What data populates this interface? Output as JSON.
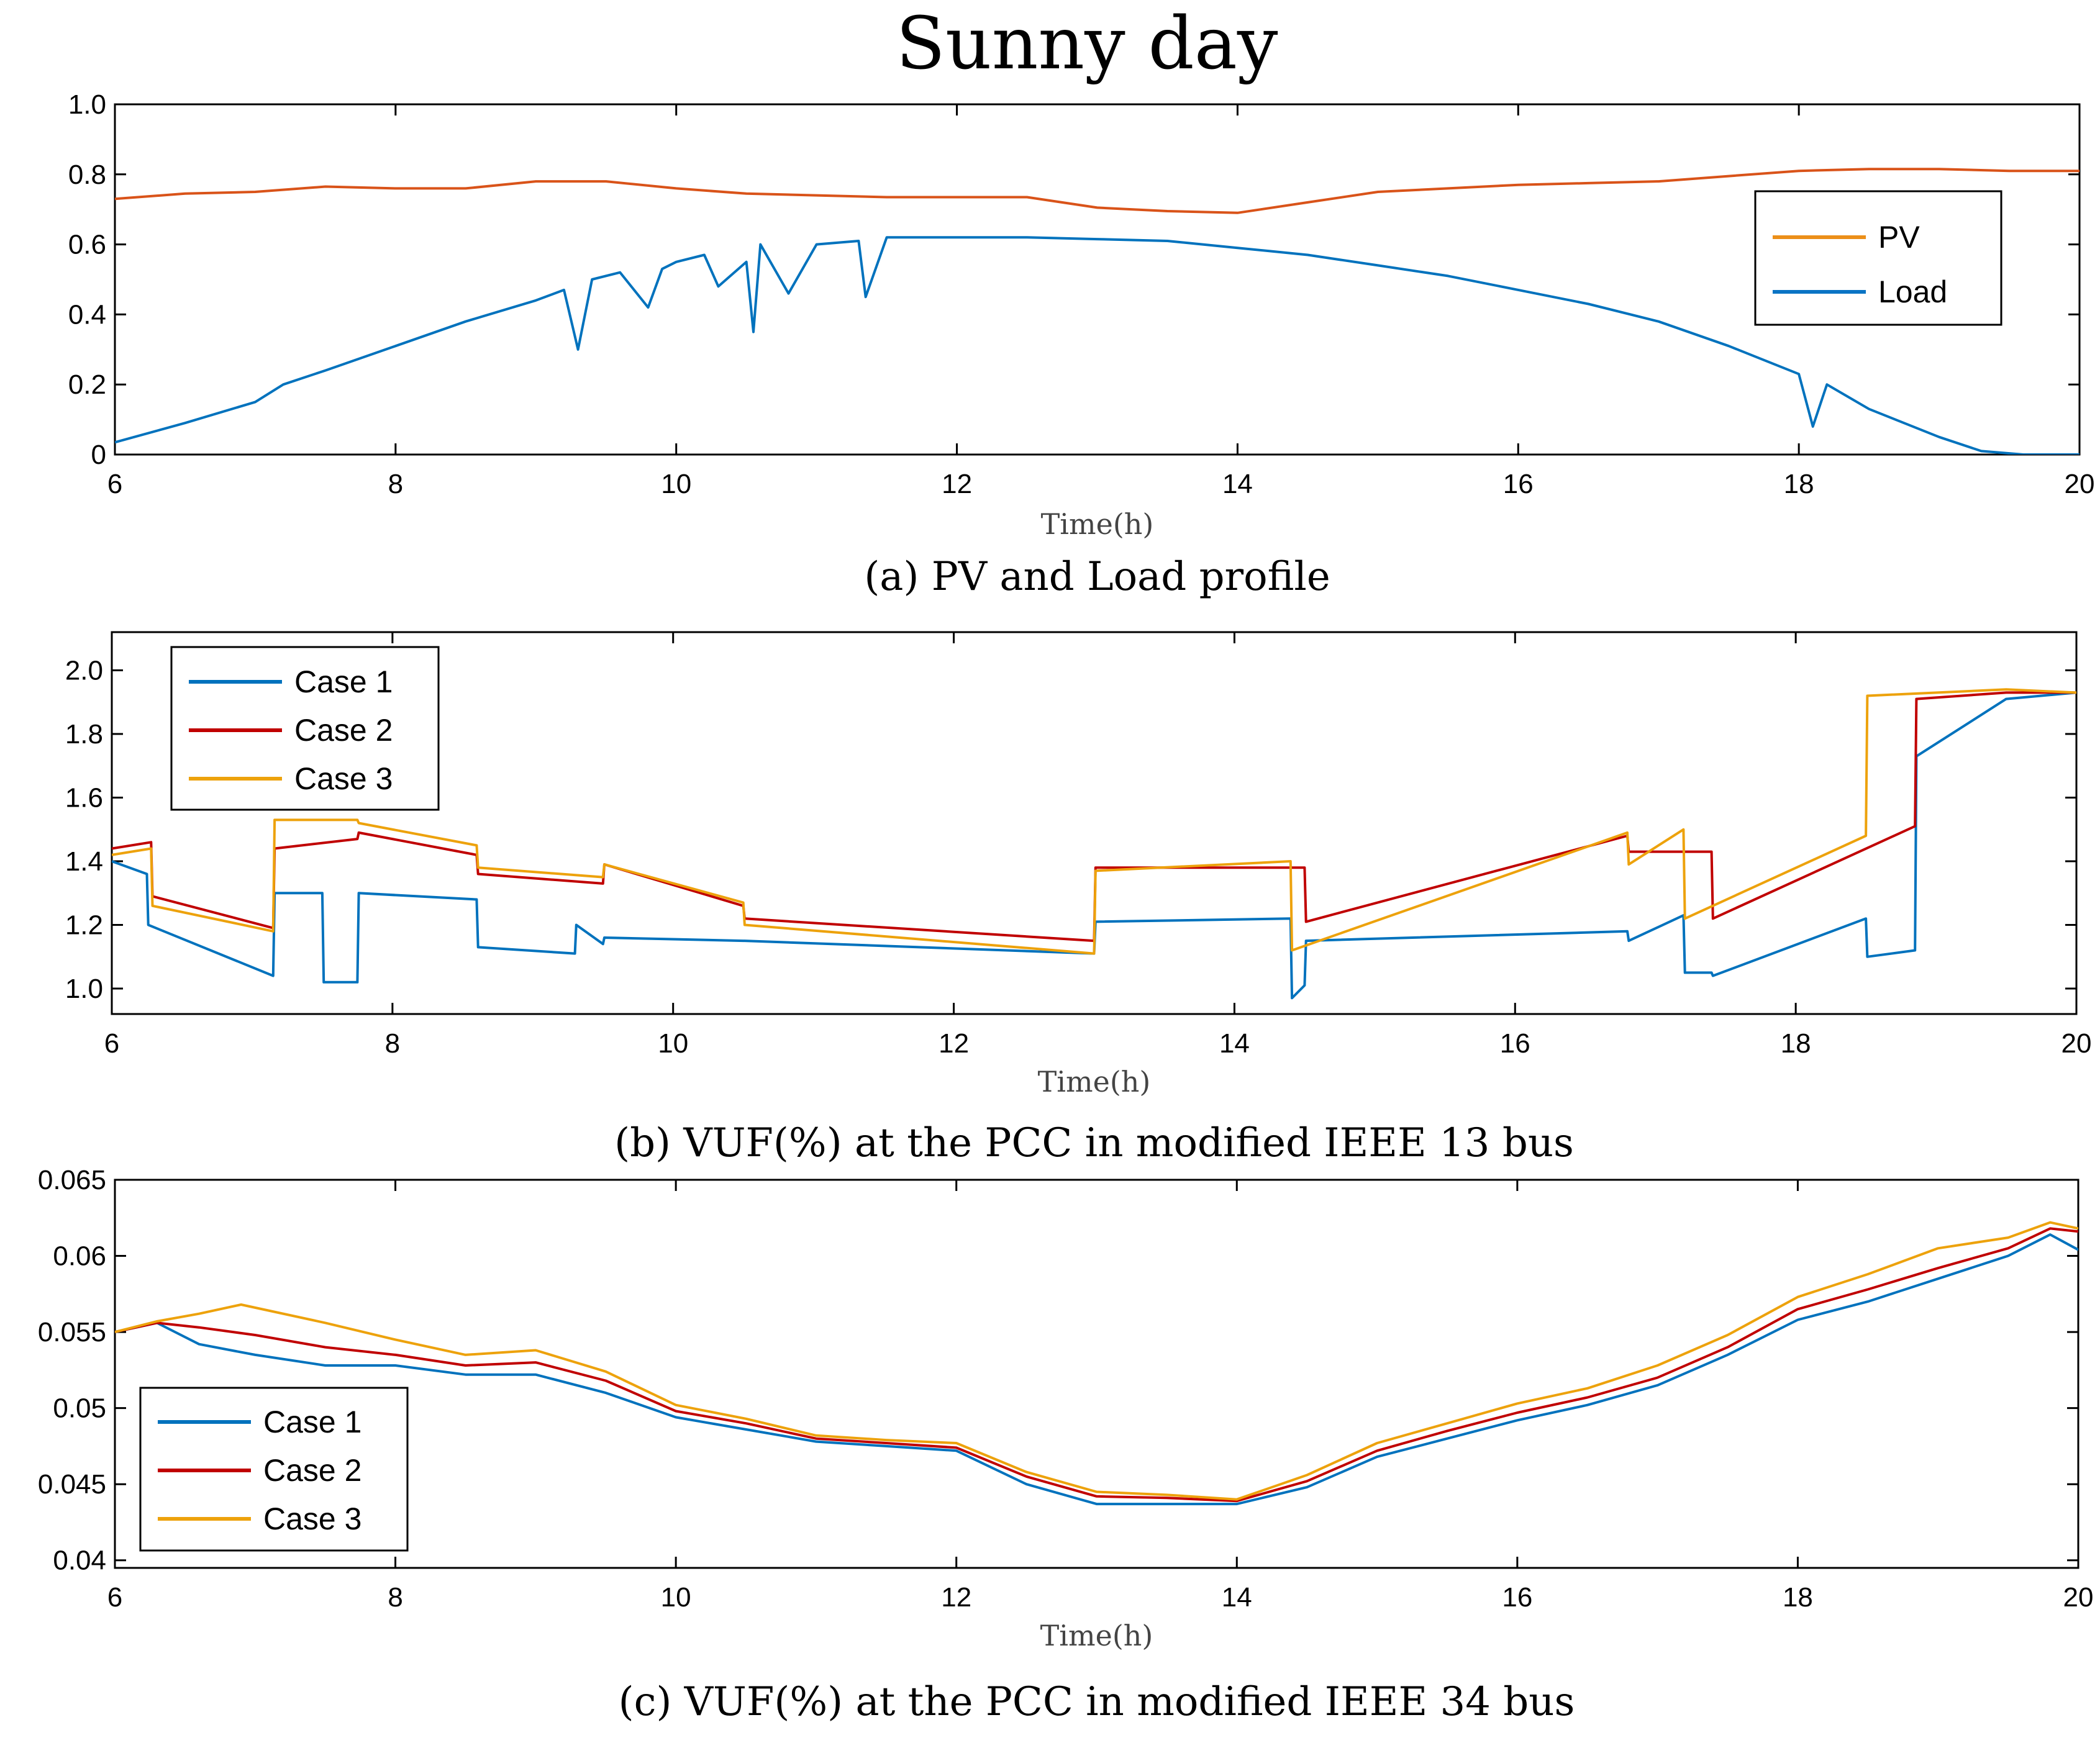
{
  "figure_title": "Sunny day",
  "colors": {
    "pv": "#D95319",
    "load": "#0072BD",
    "case1": "#0072BD",
    "case2": "#C00000",
    "case3": "#EDA20C",
    "axis": "#000000"
  },
  "chart_data": [
    {
      "type": "line",
      "caption": "(a) PV and Load profile",
      "xlabel": "Time(h)",
      "ylabel": "",
      "xlim": [
        6,
        20
      ],
      "ylim": [
        0,
        1
      ],
      "xticks": [
        6,
        8,
        10,
        12,
        14,
        16,
        18,
        20
      ],
      "yticks": [
        0,
        0.2,
        0.4,
        0.6,
        0.8,
        1.0
      ],
      "ytick_labels": [
        "0",
        "0.2",
        "0.4",
        "0.6",
        "0.8",
        "1.0"
      ],
      "legend": {
        "location": "right",
        "entries": [
          {
            "label": "PV",
            "color": "#EC8F19"
          },
          {
            "label": "Load",
            "color": "#0A74C4"
          }
        ]
      },
      "series": [
        {
          "name": "PV",
          "color": "#D95319",
          "x": [
            6,
            6.5,
            7,
            7.5,
            8,
            8.5,
            9,
            9.5,
            10,
            10.5,
            11,
            11.5,
            12,
            12.5,
            13,
            13.5,
            14,
            14.5,
            15,
            15.5,
            16,
            16.5,
            17,
            17.5,
            18,
            18.5,
            19,
            19.5,
            20
          ],
          "y": [
            0.73,
            0.745,
            0.75,
            0.765,
            0.76,
            0.76,
            0.78,
            0.78,
            0.76,
            0.745,
            0.74,
            0.735,
            0.735,
            0.735,
            0.705,
            0.695,
            0.69,
            0.72,
            0.75,
            0.76,
            0.77,
            0.775,
            0.78,
            0.795,
            0.81,
            0.815,
            0.815,
            0.81,
            0.81
          ]
        },
        {
          "name": "Load",
          "color": "#0072BD",
          "x": [
            6,
            6.5,
            7,
            7.2,
            7.5,
            8,
            8.5,
            9,
            9.2,
            9.3,
            9.4,
            9.6,
            9.8,
            9.9,
            10,
            10.2,
            10.3,
            10.5,
            10.55,
            10.6,
            10.8,
            11,
            11.3,
            11.35,
            11.5,
            12,
            12.5,
            13,
            13.5,
            14,
            14.5,
            15,
            15.5,
            16,
            16.5,
            17,
            17.5,
            18,
            18.1,
            18.2,
            18.5,
            19,
            19.3,
            19.6,
            20
          ],
          "y": [
            0.035,
            0.09,
            0.15,
            0.2,
            0.24,
            0.31,
            0.38,
            0.44,
            0.47,
            0.3,
            0.5,
            0.52,
            0.42,
            0.53,
            0.55,
            0.57,
            0.48,
            0.55,
            0.35,
            0.6,
            0.46,
            0.6,
            0.61,
            0.45,
            0.62,
            0.62,
            0.62,
            0.615,
            0.61,
            0.59,
            0.57,
            0.54,
            0.51,
            0.47,
            0.43,
            0.38,
            0.31,
            0.23,
            0.08,
            0.2,
            0.13,
            0.05,
            0.01,
            0.0,
            0.0
          ]
        }
      ]
    },
    {
      "type": "line",
      "caption": "(b) VUF(%) at the PCC in modified IEEE 13 bus",
      "xlabel": "Time(h)",
      "ylabel": "",
      "xlim": [
        6,
        20
      ],
      "ylim": [
        0.92,
        2.12
      ],
      "xticks": [
        6,
        8,
        10,
        12,
        14,
        16,
        18,
        20
      ],
      "yticks": [
        1.0,
        1.2,
        1.4,
        1.6,
        1.8,
        2.0
      ],
      "ytick_labels": [
        "1.0",
        "1.2",
        "1.4",
        "1.6",
        "1.8",
        "2.0"
      ],
      "legend": {
        "location": "top-left",
        "entries": [
          {
            "label": "Case 1",
            "color": "#0072BD"
          },
          {
            "label": "Case 2",
            "color": "#C00000"
          },
          {
            "label": "Case 3",
            "color": "#EDA20C"
          }
        ]
      },
      "series": [
        {
          "name": "Case 1",
          "color": "#0072BD",
          "x": [
            6,
            6.25,
            6.26,
            7.15,
            7.16,
            7.5,
            7.51,
            7.75,
            7.76,
            8.6,
            8.61,
            9.3,
            9.31,
            9.5,
            9.51,
            10.5,
            10.51,
            13.0,
            13.01,
            14.4,
            14.41,
            14.5,
            14.51,
            16.8,
            16.81,
            17.2,
            17.21,
            17.4,
            17.41,
            18.5,
            18.51,
            18.85,
            18.86,
            19.5,
            20
          ],
          "y": [
            1.4,
            1.36,
            1.2,
            1.04,
            1.3,
            1.3,
            1.02,
            1.02,
            1.3,
            1.28,
            1.13,
            1.11,
            1.2,
            1.14,
            1.16,
            1.15,
            1.15,
            1.11,
            1.21,
            1.22,
            0.97,
            1.01,
            1.15,
            1.18,
            1.15,
            1.23,
            1.05,
            1.05,
            1.04,
            1.22,
            1.1,
            1.12,
            1.73,
            1.91,
            1.93
          ]
        },
        {
          "name": "Case 2",
          "color": "#C00000",
          "x": [
            6,
            6.28,
            6.29,
            7.15,
            7.16,
            7.75,
            7.76,
            8.6,
            8.61,
            9.5,
            9.51,
            10.5,
            10.51,
            13.0,
            13.01,
            14.5,
            14.51,
            16.8,
            16.81,
            17.4,
            17.41,
            18.85,
            18.86,
            19.5,
            20
          ],
          "y": [
            1.44,
            1.46,
            1.29,
            1.19,
            1.44,
            1.47,
            1.49,
            1.42,
            1.36,
            1.33,
            1.39,
            1.26,
            1.22,
            1.15,
            1.38,
            1.38,
            1.21,
            1.48,
            1.43,
            1.43,
            1.22,
            1.51,
            1.91,
            1.93,
            1.93
          ]
        },
        {
          "name": "Case 3",
          "color": "#EDA20C",
          "x": [
            6,
            6.28,
            6.29,
            7.15,
            7.16,
            7.75,
            7.76,
            8.6,
            8.61,
            9.5,
            9.51,
            10.5,
            10.51,
            13.0,
            13.01,
            14.4,
            14.41,
            16.8,
            16.81,
            17.2,
            17.21,
            18.5,
            18.51,
            19.5,
            20
          ],
          "y": [
            1.42,
            1.44,
            1.26,
            1.18,
            1.53,
            1.53,
            1.52,
            1.45,
            1.38,
            1.35,
            1.39,
            1.27,
            1.2,
            1.11,
            1.37,
            1.4,
            1.12,
            1.49,
            1.39,
            1.5,
            1.22,
            1.48,
            1.92,
            1.94,
            1.93
          ]
        }
      ]
    },
    {
      "type": "line",
      "caption": "(c) VUF(%) at the PCC in modified IEEE 34 bus",
      "xlabel": "Time(h)",
      "ylabel": "",
      "xlim": [
        6,
        20
      ],
      "ylim": [
        0.0395,
        0.065
      ],
      "xticks": [
        6,
        8,
        10,
        12,
        14,
        16,
        18,
        20
      ],
      "yticks": [
        0.04,
        0.045,
        0.05,
        0.055,
        0.06,
        0.065
      ],
      "ytick_labels": [
        "0.04",
        "0.045",
        "0.05",
        "0.055",
        "0.06",
        "0.065"
      ],
      "legend": {
        "location": "bottom-left",
        "entries": [
          {
            "label": "Case 1",
            "color": "#0072BD"
          },
          {
            "label": "Case 2",
            "color": "#C00000"
          },
          {
            "label": "Case 3",
            "color": "#EDA20C"
          }
        ]
      },
      "series": [
        {
          "name": "Case 1",
          "color": "#0072BD",
          "x": [
            6,
            6.3,
            6.6,
            7,
            7.5,
            8,
            8.5,
            9,
            9.5,
            10,
            10.5,
            11,
            11.5,
            12,
            12.5,
            13,
            13.5,
            14,
            14.5,
            15,
            15.5,
            16,
            16.5,
            17,
            17.5,
            18,
            18.5,
            19,
            19.5,
            19.8,
            20
          ],
          "y": [
            0.055,
            0.0556,
            0.0542,
            0.0535,
            0.0528,
            0.0528,
            0.0522,
            0.0522,
            0.051,
            0.0494,
            0.0486,
            0.0478,
            0.0475,
            0.0472,
            0.045,
            0.0437,
            0.0437,
            0.0437,
            0.0448,
            0.0468,
            0.048,
            0.0492,
            0.0502,
            0.0515,
            0.0535,
            0.0558,
            0.057,
            0.0585,
            0.06,
            0.0614,
            0.0604
          ]
        },
        {
          "name": "Case 2",
          "color": "#C00000",
          "x": [
            6,
            6.3,
            6.6,
            7,
            7.5,
            8,
            8.5,
            9,
            9.5,
            10,
            10.5,
            11,
            11.5,
            12,
            12.5,
            13,
            13.5,
            14,
            14.5,
            15,
            15.5,
            16,
            16.5,
            17,
            17.5,
            18,
            18.5,
            19,
            19.5,
            19.8,
            20
          ],
          "y": [
            0.055,
            0.0556,
            0.0553,
            0.0548,
            0.054,
            0.0535,
            0.0528,
            0.053,
            0.0518,
            0.0498,
            0.049,
            0.048,
            0.0477,
            0.0474,
            0.0455,
            0.0442,
            0.0441,
            0.0439,
            0.0452,
            0.0472,
            0.0485,
            0.0497,
            0.0507,
            0.052,
            0.054,
            0.0565,
            0.0578,
            0.0592,
            0.0605,
            0.0618,
            0.0616
          ]
        },
        {
          "name": "Case 3",
          "color": "#EDA20C",
          "x": [
            6,
            6.3,
            6.6,
            6.9,
            7.5,
            8,
            8.5,
            9,
            9.5,
            10,
            10.5,
            11,
            11.5,
            12,
            12.5,
            13,
            13.5,
            14,
            14.5,
            15,
            15.5,
            16,
            16.5,
            17,
            17.5,
            18,
            18.5,
            19,
            19.5,
            19.8,
            20
          ],
          "y": [
            0.055,
            0.0557,
            0.0562,
            0.0568,
            0.0556,
            0.0545,
            0.0535,
            0.0538,
            0.0524,
            0.0502,
            0.0493,
            0.0482,
            0.0479,
            0.0477,
            0.0458,
            0.0445,
            0.0443,
            0.044,
            0.0456,
            0.0477,
            0.049,
            0.0503,
            0.0513,
            0.0528,
            0.0548,
            0.0573,
            0.0588,
            0.0605,
            0.0612,
            0.0622,
            0.0618
          ]
        }
      ]
    }
  ]
}
